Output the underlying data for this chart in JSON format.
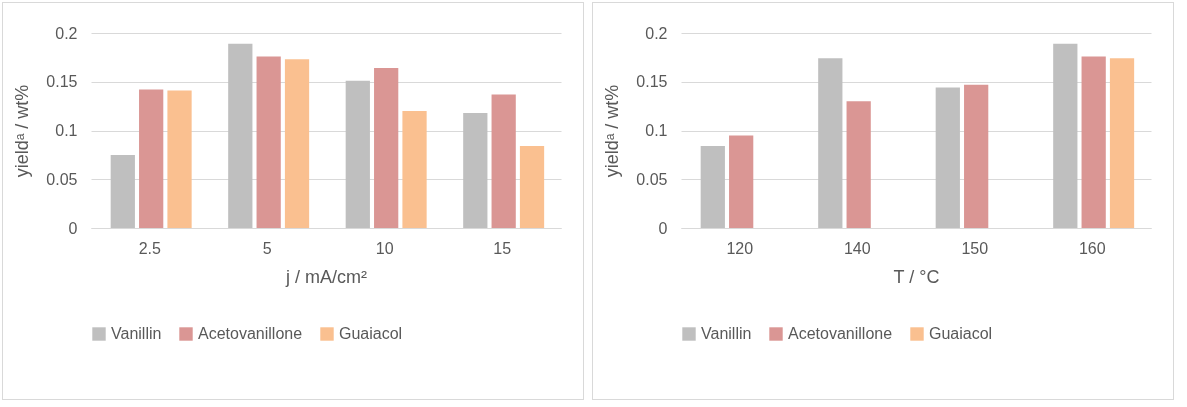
{
  "chart_data": [
    {
      "type": "bar",
      "categories": [
        "2.5",
        "5",
        "10",
        "15"
      ],
      "xlabel": "j / mA/cm²",
      "ylabel": "yieldᵃ / wt%",
      "ylim": [
        0,
        0.2
      ],
      "yticks": [
        0,
        0.05,
        0.1,
        0.15,
        0.2
      ],
      "grid": "y",
      "legend": "bottom",
      "series": [
        {
          "name": "Vanillin",
          "color": "#bfbfbf",
          "values": [
            0.075,
            0.189,
            0.151,
            0.118
          ]
        },
        {
          "name": "Acetovanillone",
          "color": "#da9694",
          "values": [
            0.142,
            0.176,
            0.164,
            0.137
          ]
        },
        {
          "name": "Guaiacol",
          "color": "#fac090",
          "values": [
            0.141,
            0.173,
            0.12,
            0.084
          ]
        }
      ]
    },
    {
      "type": "bar",
      "categories": [
        "120",
        "140",
        "150",
        "160"
      ],
      "xlabel": "T / °C",
      "ylabel": "yieldᵃ / wt%",
      "ylim": [
        0,
        0.2
      ],
      "yticks": [
        0,
        0.05,
        0.1,
        0.15,
        0.2
      ],
      "grid": "y",
      "legend": "bottom",
      "series": [
        {
          "name": "Vanillin",
          "color": "#bfbfbf",
          "values": [
            0.084,
            0.174,
            0.144,
            0.189
          ]
        },
        {
          "name": "Acetovanillone",
          "color": "#da9694",
          "values": [
            0.095,
            0.13,
            0.147,
            0.176
          ]
        },
        {
          "name": "Guaiacol",
          "color": "#fac090",
          "values": [
            null,
            null,
            null,
            0.174
          ]
        }
      ]
    }
  ]
}
